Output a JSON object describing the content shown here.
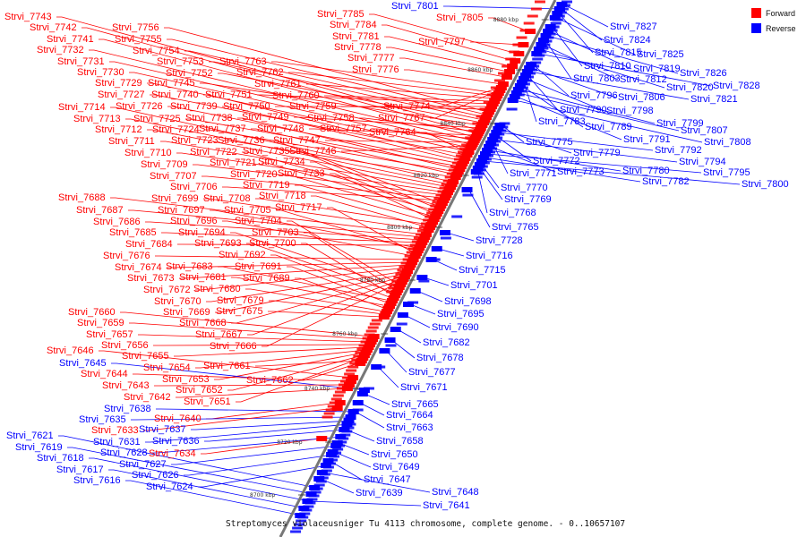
{
  "caption": "Streptomyces violaceusniger Tu 4113 chromosome, complete genome. - 0..10657107",
  "legend": [
    {
      "label": "Forward",
      "color": "#ff0000"
    },
    {
      "label": "Reverse",
      "color": "#0000ff"
    }
  ],
  "ticks": [
    "8700 kbp",
    "8720 kbp",
    "8740 kbp",
    "8760 kbp",
    "8780 kbp",
    "8800 kbp",
    "8820 kbp",
    "8840 kbp",
    "8860 kbp",
    "8880 kbp"
  ],
  "left_genes": [
    {
      "name": "Strvi_7743",
      "strand": "forward"
    },
    {
      "name": "Strvi_7742",
      "strand": "forward"
    },
    {
      "name": "Strvi_7741",
      "strand": "forward"
    },
    {
      "name": "Strvi_7732",
      "strand": "forward"
    },
    {
      "name": "Strvi_7731",
      "strand": "forward"
    },
    {
      "name": "Strvi_7730",
      "strand": "forward"
    },
    {
      "name": "Strvi_7729",
      "strand": "forward"
    },
    {
      "name": "Strvi_7727",
      "strand": "forward"
    },
    {
      "name": "Strvi_7714",
      "strand": "forward"
    },
    {
      "name": "Strvi_7713",
      "strand": "forward"
    },
    {
      "name": "Strvi_7712",
      "strand": "forward"
    },
    {
      "name": "Strvi_7711",
      "strand": "forward"
    },
    {
      "name": "Strvi_7710",
      "strand": "forward"
    },
    {
      "name": "Strvi_7709",
      "strand": "forward"
    },
    {
      "name": "Strvi_7707",
      "strand": "forward"
    },
    {
      "name": "Strvi_7706",
      "strand": "forward"
    },
    {
      "name": "Strvi_7688",
      "strand": "forward"
    },
    {
      "name": "Strvi_7687",
      "strand": "forward"
    },
    {
      "name": "Strvi_7686",
      "strand": "forward"
    },
    {
      "name": "Strvi_7685",
      "strand": "forward"
    },
    {
      "name": "Strvi_7684",
      "strand": "forward"
    },
    {
      "name": "Strvi_7676",
      "strand": "forward"
    },
    {
      "name": "Strvi_7674",
      "strand": "forward"
    },
    {
      "name": "Strvi_7673",
      "strand": "forward"
    },
    {
      "name": "Strvi_7672",
      "strand": "forward"
    },
    {
      "name": "Strvi_7670",
      "strand": "forward"
    },
    {
      "name": "Strvi_7669",
      "strand": "forward"
    },
    {
      "name": "Strvi_7668",
      "strand": "forward"
    },
    {
      "name": "Strvi_7667",
      "strand": "forward"
    },
    {
      "name": "Strvi_7666",
      "strand": "forward"
    },
    {
      "name": "Strvi_7660",
      "strand": "forward"
    },
    {
      "name": "Strvi_7659",
      "strand": "forward"
    },
    {
      "name": "Strvi_7657",
      "strand": "forward"
    },
    {
      "name": "Strvi_7656",
      "strand": "forward"
    },
    {
      "name": "Strvi_7655",
      "strand": "forward"
    },
    {
      "name": "Strvi_7654",
      "strand": "forward"
    },
    {
      "name": "Strvi_7653",
      "strand": "forward"
    },
    {
      "name": "Strvi_7652",
      "strand": "forward"
    },
    {
      "name": "Strvi_7651",
      "strand": "forward"
    },
    {
      "name": "Strvi_7646",
      "strand": "forward"
    },
    {
      "name": "Strvi_7645",
      "strand": "reverse"
    },
    {
      "name": "Strvi_7644",
      "strand": "forward"
    },
    {
      "name": "Strvi_7643",
      "strand": "forward"
    },
    {
      "name": "Strvi_7642",
      "strand": "forward"
    },
    {
      "name": "Strvi_7640",
      "strand": "forward"
    },
    {
      "name": "Strvi_7638",
      "strand": "reverse"
    },
    {
      "name": "Strvi_7637",
      "strand": "reverse"
    },
    {
      "name": "Strvi_7636",
      "strand": "reverse"
    },
    {
      "name": "Strvi_7635",
      "strand": "reverse"
    },
    {
      "name": "Strvi_7634",
      "strand": "forward"
    },
    {
      "name": "Strvi_7633",
      "strand": "forward"
    },
    {
      "name": "Strvi_7631",
      "strand": "reverse"
    },
    {
      "name": "Strvi_7628",
      "strand": "reverse"
    },
    {
      "name": "Strvi_7627",
      "strand": "reverse"
    },
    {
      "name": "Strvi_7626",
      "strand": "reverse"
    },
    {
      "name": "Strvi_7624",
      "strand": "reverse"
    },
    {
      "name": "Strvi_7621",
      "strand": "reverse"
    },
    {
      "name": "Strvi_7619",
      "strand": "reverse"
    },
    {
      "name": "Strvi_7618",
      "strand": "reverse"
    },
    {
      "name": "Strvi_7617",
      "strand": "reverse"
    },
    {
      "name": "Strvi_7616",
      "strand": "reverse"
    },
    {
      "name": "Strvi_7756",
      "strand": "forward"
    },
    {
      "name": "Strvi_7755",
      "strand": "forward"
    },
    {
      "name": "Strvi_7754",
      "strand": "forward"
    },
    {
      "name": "Strvi_7753",
      "strand": "forward"
    },
    {
      "name": "Strvi_7752",
      "strand": "forward"
    },
    {
      "name": "Strvi_7745",
      "strand": "forward"
    },
    {
      "name": "Strvi_7740",
      "strand": "forward"
    },
    {
      "name": "Strvi_7739",
      "strand": "forward"
    },
    {
      "name": "Strvi_7726",
      "strand": "forward"
    },
    {
      "name": "Strvi_7725",
      "strand": "forward"
    },
    {
      "name": "Strvi_7738",
      "strand": "forward"
    },
    {
      "name": "Strvi_7724",
      "strand": "forward"
    },
    {
      "name": "Strvi_7737",
      "strand": "forward"
    },
    {
      "name": "Strvi_7723",
      "strand": "forward"
    },
    {
      "name": "Strvi_7736",
      "strand": "forward"
    },
    {
      "name": "Strvi_7722",
      "strand": "forward"
    },
    {
      "name": "Strvi_7735",
      "strand": "forward"
    },
    {
      "name": "Strvi_7721",
      "strand": "forward"
    },
    {
      "name": "Strvi_7734",
      "strand": "forward"
    },
    {
      "name": "Strvi_7720",
      "strand": "forward"
    },
    {
      "name": "Strvi_7733",
      "strand": "forward"
    },
    {
      "name": "Strvi_7719",
      "strand": "forward"
    },
    {
      "name": "Strvi_7708",
      "strand": "forward"
    },
    {
      "name": "Strvi_7718",
      "strand": "forward"
    },
    {
      "name": "Strvi_7699",
      "strand": "forward"
    },
    {
      "name": "Strvi_7697",
      "strand": "forward"
    },
    {
      "name": "Strvi_7705",
      "strand": "forward"
    },
    {
      "name": "Strvi_7717",
      "strand": "forward"
    },
    {
      "name": "Strvi_7696",
      "strand": "forward"
    },
    {
      "name": "Strvi_7704",
      "strand": "forward"
    },
    {
      "name": "Strvi_7694",
      "strand": "forward"
    },
    {
      "name": "Strvi_7703",
      "strand": "forward"
    },
    {
      "name": "Strvi_7693",
      "strand": "forward"
    },
    {
      "name": "Strvi_7700",
      "strand": "forward"
    },
    {
      "name": "Strvi_7692",
      "strand": "forward"
    },
    {
      "name": "Strvi_7683",
      "strand": "forward"
    },
    {
      "name": "Strvi_7691",
      "strand": "forward"
    },
    {
      "name": "Strvi_7681",
      "strand": "forward"
    },
    {
      "name": "Strvi_7689",
      "strand": "forward"
    },
    {
      "name": "Strvi_7680",
      "strand": "forward"
    },
    {
      "name": "Strvi_7679",
      "strand": "forward"
    },
    {
      "name": "Strvi_7675",
      "strand": "forward"
    },
    {
      "name": "Strvi_7661",
      "strand": "forward"
    },
    {
      "name": "Strvi_7662",
      "strand": "forward"
    },
    {
      "name": "Strvi_7763",
      "strand": "forward"
    },
    {
      "name": "Strvi_7762",
      "strand": "forward"
    },
    {
      "name": "Strvi_7761",
      "strand": "forward"
    },
    {
      "name": "Strvi_7760",
      "strand": "forward"
    },
    {
      "name": "Strvi_7751",
      "strand": "forward"
    },
    {
      "name": "Strvi_7750",
      "strand": "forward"
    },
    {
      "name": "Strvi_7759",
      "strand": "forward"
    },
    {
      "name": "Strvi_7749",
      "strand": "forward"
    },
    {
      "name": "Strvi_7758",
      "strand": "forward"
    },
    {
      "name": "Strvi_7748",
      "strand": "forward"
    },
    {
      "name": "Strvi_7757",
      "strand": "forward"
    },
    {
      "name": "Strvi_7747",
      "strand": "forward"
    },
    {
      "name": "Strvi_7746",
      "strand": "forward"
    },
    {
      "name": "Strvi_7785",
      "strand": "forward"
    },
    {
      "name": "Strvi_7784",
      "strand": "forward"
    },
    {
      "name": "Strvi_7781",
      "strand": "forward"
    },
    {
      "name": "Strvi_7778",
      "strand": "forward"
    },
    {
      "name": "Strvi_7777",
      "strand": "forward"
    },
    {
      "name": "Strvi_7776",
      "strand": "forward"
    },
    {
      "name": "Strvi_7801",
      "strand": "reverse"
    },
    {
      "name": "Strvi_7805",
      "strand": "forward"
    },
    {
      "name": "Strvi_7797",
      "strand": "forward"
    },
    {
      "name": "Strvi_7774",
      "strand": "forward"
    },
    {
      "name": "Strvi_7767",
      "strand": "forward"
    },
    {
      "name": "Strvi_7764",
      "strand": "forward"
    }
  ],
  "right_genes": [
    {
      "name": "Strvi_7827",
      "strand": "reverse"
    },
    {
      "name": "Strvi_7824",
      "strand": "reverse"
    },
    {
      "name": "Strvi_7815",
      "strand": "reverse"
    },
    {
      "name": "Strvi_7825",
      "strand": "reverse"
    },
    {
      "name": "Strvi_7810",
      "strand": "reverse"
    },
    {
      "name": "Strvi_7819",
      "strand": "reverse"
    },
    {
      "name": "Strvi_7826",
      "strand": "reverse"
    },
    {
      "name": "Strvi_7803",
      "strand": "reverse"
    },
    {
      "name": "Strvi_7812",
      "strand": "reverse"
    },
    {
      "name": "Strvi_7820",
      "strand": "reverse"
    },
    {
      "name": "Strvi_7828",
      "strand": "reverse"
    },
    {
      "name": "Strvi_7796",
      "strand": "reverse"
    },
    {
      "name": "Strvi_7806",
      "strand": "reverse"
    },
    {
      "name": "Strvi_7821",
      "strand": "reverse"
    },
    {
      "name": "Strvi_7790",
      "strand": "reverse"
    },
    {
      "name": "Strvi_7798",
      "strand": "reverse"
    },
    {
      "name": "Strvi_7783",
      "strand": "reverse"
    },
    {
      "name": "Strvi_7789",
      "strand": "reverse"
    },
    {
      "name": "Strvi_7799",
      "strand": "reverse"
    },
    {
      "name": "Strvi_7807",
      "strand": "reverse"
    },
    {
      "name": "Strvi_7791",
      "strand": "reverse"
    },
    {
      "name": "Strvi_7808",
      "strand": "reverse"
    },
    {
      "name": "Strvi_7775",
      "strand": "reverse"
    },
    {
      "name": "Strvi_7779",
      "strand": "reverse"
    },
    {
      "name": "Strvi_7792",
      "strand": "reverse"
    },
    {
      "name": "Strvi_7772",
      "strand": "reverse"
    },
    {
      "name": "Strvi_7794",
      "strand": "reverse"
    },
    {
      "name": "Strvi_7771",
      "strand": "reverse"
    },
    {
      "name": "Strvi_7773",
      "strand": "reverse"
    },
    {
      "name": "Strvi_7780",
      "strand": "reverse"
    },
    {
      "name": "Strvi_7795",
      "strand": "reverse"
    },
    {
      "name": "Strvi_7782",
      "strand": "reverse"
    },
    {
      "name": "Strvi_7800",
      "strand": "reverse"
    },
    {
      "name": "Strvi_7770",
      "strand": "reverse"
    },
    {
      "name": "Strvi_7769",
      "strand": "reverse"
    },
    {
      "name": "Strvi_7768",
      "strand": "reverse"
    },
    {
      "name": "Strvi_7765",
      "strand": "reverse"
    },
    {
      "name": "Strvi_7728",
      "strand": "reverse"
    },
    {
      "name": "Strvi_7716",
      "strand": "reverse"
    },
    {
      "name": "Strvi_7715",
      "strand": "reverse"
    },
    {
      "name": "Strvi_7701",
      "strand": "reverse"
    },
    {
      "name": "Strvi_7698",
      "strand": "reverse"
    },
    {
      "name": "Strvi_7695",
      "strand": "reverse"
    },
    {
      "name": "Strvi_7690",
      "strand": "reverse"
    },
    {
      "name": "Strvi_7682",
      "strand": "reverse"
    },
    {
      "name": "Strvi_7678",
      "strand": "reverse"
    },
    {
      "name": "Strvi_7677",
      "strand": "reverse"
    },
    {
      "name": "Strvi_7671",
      "strand": "reverse"
    },
    {
      "name": "Strvi_7665",
      "strand": "reverse"
    },
    {
      "name": "Strvi_7664",
      "strand": "reverse"
    },
    {
      "name": "Strvi_7663",
      "strand": "reverse"
    },
    {
      "name": "Strvi_7658",
      "strand": "reverse"
    },
    {
      "name": "Strvi_7650",
      "strand": "reverse"
    },
    {
      "name": "Strvi_7649",
      "strand": "reverse"
    },
    {
      "name": "Strvi_7647",
      "strand": "reverse"
    },
    {
      "name": "Strvi_7648",
      "strand": "reverse"
    },
    {
      "name": "Strvi_7639",
      "strand": "reverse"
    },
    {
      "name": "Strvi_7641",
      "strand": "reverse"
    }
  ]
}
